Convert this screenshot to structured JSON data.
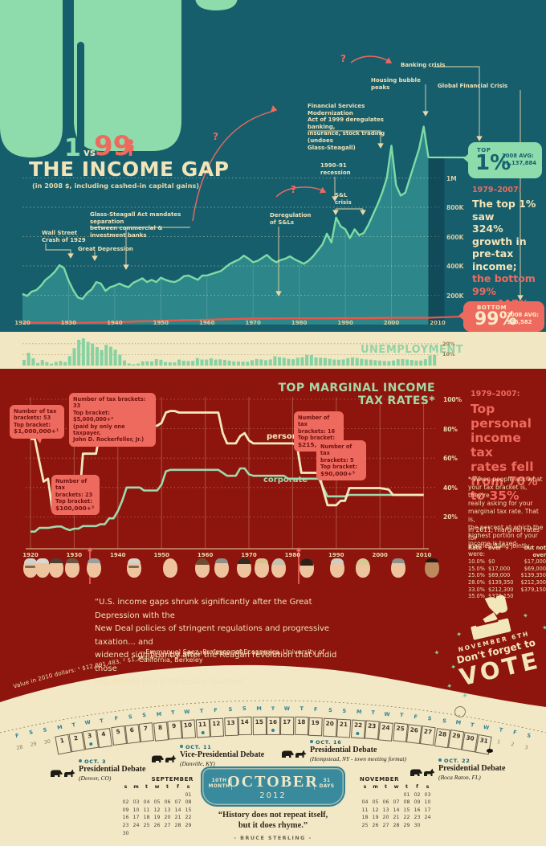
{
  "colors": {
    "teal_bg": "#175e6d",
    "mint": "#8edcab",
    "cream": "#f2e4b8",
    "salmon": "#ef6a5e",
    "dark_red": "#8d150d",
    "band_cream": "#f1e7c2",
    "cal_teal": "#2e8496"
  },
  "top_section": {
    "title_1": "1",
    "title_vs": "vs",
    "title_99": "99",
    "title": "THE INCOME GAP",
    "subtitle": "(in 2008 $, including cashed-in capital gains)",
    "y_axis": [
      "1M",
      "800K",
      "600K",
      "400K",
      "200K"
    ],
    "x_axis": [
      "1920",
      "1930",
      "1940",
      "1950",
      "1960",
      "1970",
      "1980",
      "1990",
      "2000",
      "2010"
    ],
    "annotations": [
      {
        "id": "wall_street",
        "text": "Wall Street\nCrash of 1929"
      },
      {
        "id": "great_depression",
        "text": "Great Depression"
      },
      {
        "id": "glass_steagall",
        "text": "Glass-Steagall Act mandates separation\nbetween commercial & investment banks"
      },
      {
        "id": "dereg_sl",
        "text": "Deregulation\nof S&Ls"
      },
      {
        "id": "recession_9091",
        "text": "1990–91\nrecession"
      },
      {
        "id": "sl_crisis",
        "text": "S&L\ncrisis"
      },
      {
        "id": "fsma",
        "text": "Financial Services Modernization\nAct of 1999 deregulates banking,\ninsurance, stock trading (undoes\nGlass-Steagall)"
      },
      {
        "id": "housing_bubble",
        "text": "Housing bubble peaks"
      },
      {
        "id": "banking_crisis",
        "text": "Banking crisis"
      },
      {
        "id": "gfc",
        "text": "Global Financial Crisis"
      }
    ],
    "question_mark": "?",
    "top_badge": {
      "label": "TOP",
      "pct": "1%",
      "avg": "2008 AVG:\n$1,137,884"
    },
    "bottom_badge": {
      "label": "BOTTOM",
      "pct": "99%",
      "avg": "2008 AVG:\n$46,582"
    },
    "sidenote": {
      "period": "1979–2007:",
      "text_cream": "The top 1% saw\n324% growth in\npre-tax income;",
      "text_salmon": "the bottom 99%\nsaw 117%."
    }
  },
  "unemployment": {
    "label": "UNEMPLOYMENT",
    "gridline_labels": [
      "20%",
      "10%"
    ]
  },
  "tax_section": {
    "title": "TOP MARGINAL INCOME TAX RATES*",
    "y_axis": [
      "100%",
      "80%",
      "60%",
      "40%",
      "20%"
    ],
    "x_axis": [
      "1920",
      "1930",
      "1940",
      "1950",
      "1960",
      "1970",
      "1980",
      "1990",
      "2000",
      "2010"
    ],
    "line_labels": {
      "personal": "personal",
      "corporate": "corporate"
    },
    "callouts": [
      {
        "lines": [
          "Number of tax",
          "brackets: 53",
          "Top bracket:"
        ],
        "value": "$1,000,000+¹"
      },
      {
        "lines": [
          "Number of tax brackets: 33",
          "Top bracket: $5,000,000+²",
          "(paid by only one taxpayer,",
          "John D. Rockerfeller, Jr.)"
        ],
        "value": ""
      },
      {
        "lines": [
          "Number of tax",
          "brackets: 23",
          "Top bracket:"
        ],
        "value": "$100,000+³"
      },
      {
        "lines": [
          "Number of tax",
          "brackets: 16",
          "Top bracket:"
        ],
        "value": "$215,400+⁴"
      },
      {
        "lines": [
          "Number of tax",
          "brackets: 5",
          "Top bracket:"
        ],
        "value": "$90,000+⁵"
      }
    ],
    "sidenote": {
      "period": "1979–2007:",
      "text": "Top personal\nincome tax\nrates fell\nfrom 70%\nto 35%"
    },
    "footnote": "* When people ask what\nyour tax bracket is, they're\nreally asking for your\nmarginal tax rate. That is,\nthe percent at which the\nhighest portion of your\nincome is taxed.",
    "footnote2": "In 2011, marginal rates for\nmarried filing jointly were:",
    "rate_table": {
      "headers": [
        "Rate",
        "over",
        "but not over"
      ],
      "rows": [
        [
          "10.0%",
          "$0",
          "$17,000"
        ],
        [
          "15.0%",
          "$17,000",
          "$69,000"
        ],
        [
          "25.0%",
          "$69,000",
          "$139,350"
        ],
        [
          "28.0%",
          "$139,350",
          "$212,300"
        ],
        [
          "33.0%",
          "$212,300",
          "$379,150"
        ],
        [
          "35.0%",
          "$379,150",
          ""
        ]
      ]
    },
    "president_faces": [
      "wilson",
      "harding",
      "coolidge",
      "hoover",
      "fdr",
      "truman",
      "eisenhower",
      "kennedy",
      "johnson",
      "nixon",
      "ford",
      "carter",
      "reagan",
      "bush-sr",
      "clinton",
      "bush-jr",
      "obama"
    ]
  },
  "quote": {
    "text": "“U.S. income gaps shrunk significantly after the Great Depression with the\nNew Deal policies of stringent regulations and progressive taxation... and\nwidened significantly after the Reagan revolution that undid those\nregulations and progressive taxation.”",
    "attribution": "—Emmanuel Saez, Professor of Economics, University of California, Berkeley"
  },
  "values_footnote": "Value in 2010 dollars: ¹ $12,891,483,  ² $1,244,437,  ³ $78,582,076,  ⁴ $509,909,  ⁵ $179,904",
  "vote_stamp": {
    "date": "NOVEMBER 6TH",
    "line": "Don't forget to",
    "vote": "VOTE"
  },
  "calendar": {
    "prev_days": [
      {
        "d": "28",
        "w": "F"
      },
      {
        "d": "29",
        "w": "S"
      },
      {
        "d": "30",
        "w": "S"
      }
    ],
    "oct_weekdays": [
      "M",
      "T",
      "W",
      "T",
      "F",
      "S",
      "S"
    ],
    "oct_event_days": [
      3,
      11,
      16,
      22
    ],
    "next_days": [
      {
        "d": "1",
        "w": "T"
      },
      {
        "d": "2",
        "w": "F"
      },
      {
        "d": "3",
        "w": "S"
      }
    ],
    "banner": {
      "month_index": "10TH MONTH",
      "month": "OCTOBER",
      "year": "2012",
      "days": "31 DAYS"
    },
    "debates": [
      {
        "date": "OCT. 3",
        "title": "Presidential Debate",
        "location": "(Denver, CO)"
      },
      {
        "date": "OCT. 11",
        "title": "Vice-Presidential Debate",
        "location": "(Danville, KY)"
      },
      {
        "date": "OCT. 16",
        "title": "Presidential Debate",
        "location": "(Hempstead, NY - town meeting format)"
      },
      {
        "date": "OCT. 22",
        "title": "Presidential Debate",
        "location": "(Boca Raton, FL)"
      }
    ],
    "mini_calendars": [
      {
        "name": "SEPTEMBER",
        "dow": [
          "s",
          "m",
          "t",
          "w",
          "t",
          "f",
          "s"
        ],
        "weeks": [
          [
            "",
            "",
            "",
            "",
            "",
            "",
            "01"
          ],
          [
            "02",
            "03",
            "04",
            "05",
            "06",
            "07",
            "08"
          ],
          [
            "09",
            "10",
            "11",
            "12",
            "13",
            "14",
            "15"
          ],
          [
            "16",
            "17",
            "18",
            "19",
            "20",
            "21",
            "22"
          ],
          [
            "23",
            "24",
            "25",
            "26",
            "27",
            "28",
            "29"
          ],
          [
            "30",
            "",
            "",
            "",
            "",
            "",
            ""
          ]
        ]
      },
      {
        "name": "NOVEMBER",
        "dow": [
          "s",
          "m",
          "t",
          "w",
          "t",
          "f",
          "s"
        ],
        "weeks": [
          [
            "",
            "",
            "",
            "",
            "01",
            "02",
            "03"
          ],
          [
            "04",
            "05",
            "06",
            "07",
            "08",
            "09",
            "10"
          ],
          [
            "11",
            "12",
            "13",
            "14",
            "15",
            "16",
            "17"
          ],
          [
            "18",
            "19",
            "20",
            "21",
            "22",
            "23",
            "24"
          ],
          [
            "25",
            "26",
            "27",
            "28",
            "29",
            "30",
            ""
          ]
        ]
      }
    ],
    "quote": {
      "line1": "“History does not repeat itself,",
      "line2": "but it does rhyme.”",
      "attribution": "- BRUCE STERLING -"
    }
  },
  "chart_data": [
    {
      "type": "area",
      "title": "Average income: top 1% vs bottom 99% (2008 $)",
      "x_start": 1920,
      "x_step": 1,
      "units": "thousands of 2008 dollars",
      "ylim": [
        0,
        1400
      ],
      "y_ticks": [
        {
          "v": 1000,
          "label": "1M"
        },
        {
          "v": 800,
          "label": "800K"
        },
        {
          "v": 600,
          "label": "600K"
        },
        {
          "v": 400,
          "label": "400K"
        },
        {
          "v": 200,
          "label": "200K"
        }
      ],
      "series": [
        {
          "name": "top 1% average income",
          "values": [
            210,
            195,
            225,
            235,
            265,
            305,
            330,
            360,
            405,
            385,
            300,
            235,
            185,
            175,
            215,
            240,
            290,
            280,
            230,
            255,
            265,
            280,
            265,
            255,
            285,
            300,
            315,
            290,
            305,
            290,
            320,
            305,
            295,
            290,
            305,
            330,
            335,
            320,
            305,
            335,
            335,
            345,
            355,
            365,
            390,
            415,
            430,
            445,
            470,
            450,
            425,
            435,
            455,
            475,
            445,
            425,
            440,
            450,
            465,
            445,
            430,
            415,
            435,
            465,
            505,
            545,
            620,
            560,
            730,
            670,
            650,
            590,
            650,
            610,
            625,
            680,
            750,
            820,
            900,
            1000,
            1220,
            950,
            880,
            900,
            1000,
            1100,
            1200,
            1350,
            1140
          ]
        },
        {
          "name": "bottom 99% average income",
          "x": [
            1920,
            1925,
            1930,
            1935,
            1940,
            1945,
            1950,
            1955,
            1960,
            1965,
            1970,
            1975,
            1980,
            1985,
            1990,
            1995,
            2000,
            2005,
            2008
          ],
          "values": [
            12,
            13,
            12,
            13,
            16,
            22,
            25,
            30,
            33,
            37,
            41,
            42,
            43,
            43,
            44,
            44,
            46,
            46,
            46.5
          ]
        }
      ]
    },
    {
      "type": "bar",
      "title": "Unemployment",
      "x_start": 1920,
      "x_step": 1,
      "units": "%",
      "gridlines": [
        10,
        20
      ],
      "values": [
        5.2,
        11.7,
        6.7,
        2.4,
        5.0,
        3.2,
        1.8,
        3.3,
        4.2,
        3.2,
        8.7,
        15.9,
        23.6,
        24.9,
        21.7,
        20.1,
        16.9,
        14.3,
        19.0,
        17.2,
        14.6,
        9.9,
        4.7,
        1.9,
        1.2,
        1.9,
        3.9,
        3.9,
        3.8,
        5.9,
        5.3,
        3.3,
        3.0,
        2.9,
        5.5,
        4.4,
        4.1,
        4.3,
        6.8,
        5.5,
        5.5,
        6.7,
        5.5,
        5.7,
        5.2,
        4.5,
        3.8,
        3.8,
        3.6,
        3.5,
        4.9,
        5.9,
        5.6,
        4.9,
        5.6,
        8.5,
        7.7,
        7.1,
        6.1,
        5.8,
        7.1,
        7.6,
        9.7,
        9.6,
        7.5,
        7.2,
        7.0,
        6.2,
        5.5,
        5.3,
        5.6,
        6.8,
        7.5,
        6.9,
        6.1,
        5.6,
        5.4,
        4.9,
        4.5,
        4.2,
        4.0,
        4.7,
        5.8,
        6.0,
        5.5,
        5.1,
        4.6,
        4.6,
        5.8,
        9.3,
        9.6
      ]
    },
    {
      "type": "line",
      "title": "Top marginal income tax rates",
      "x_start": 1920,
      "x_step": 1,
      "units": "%",
      "ylim": [
        0,
        100
      ],
      "series": [
        {
          "name": "personal",
          "values": [
            73,
            73,
            58,
            44,
            46,
            25,
            25,
            25,
            25,
            24,
            25,
            25,
            63,
            63,
            63,
            63,
            79,
            79,
            79,
            79,
            81,
            81,
            88,
            88,
            94,
            94,
            86,
            86,
            82,
            82,
            84,
            91,
            92,
            92,
            91,
            91,
            91,
            91,
            91,
            91,
            91,
            91,
            91,
            91,
            77,
            70,
            70,
            70,
            75,
            77,
            72,
            70,
            70,
            70,
            70,
            70,
            70,
            70,
            70,
            70,
            70,
            69,
            50,
            50,
            50,
            50,
            50,
            38.5,
            28,
            28,
            28,
            31,
            31,
            39.6,
            39.6,
            39.6,
            39.6,
            39.6,
            39.6,
            39.6,
            39.6,
            39.1,
            38.6,
            35,
            35,
            35,
            35,
            35,
            35,
            35,
            35
          ]
        },
        {
          "name": "corporate",
          "values": [
            10,
            10,
            12.5,
            12.5,
            12.5,
            13,
            13.5,
            13.5,
            12,
            11,
            12,
            12,
            13.75,
            13.75,
            13.75,
            13.75,
            15,
            15,
            19,
            19,
            24,
            31,
            40,
            40,
            40,
            40,
            38,
            38,
            38,
            38,
            42,
            51,
            52,
            52,
            52,
            52,
            52,
            52,
            52,
            52,
            52,
            52,
            52,
            52,
            50,
            48,
            48,
            48,
            53,
            53,
            49,
            48,
            48,
            48,
            48,
            48,
            48,
            48,
            48,
            46,
            46,
            46,
            46,
            46,
            46,
            46,
            46,
            40,
            34,
            34,
            34,
            34,
            34,
            35,
            35,
            35,
            35,
            35,
            35,
            35,
            35,
            35,
            35,
            35,
            35,
            35,
            35,
            35,
            35,
            35,
            35
          ]
        }
      ]
    }
  ]
}
